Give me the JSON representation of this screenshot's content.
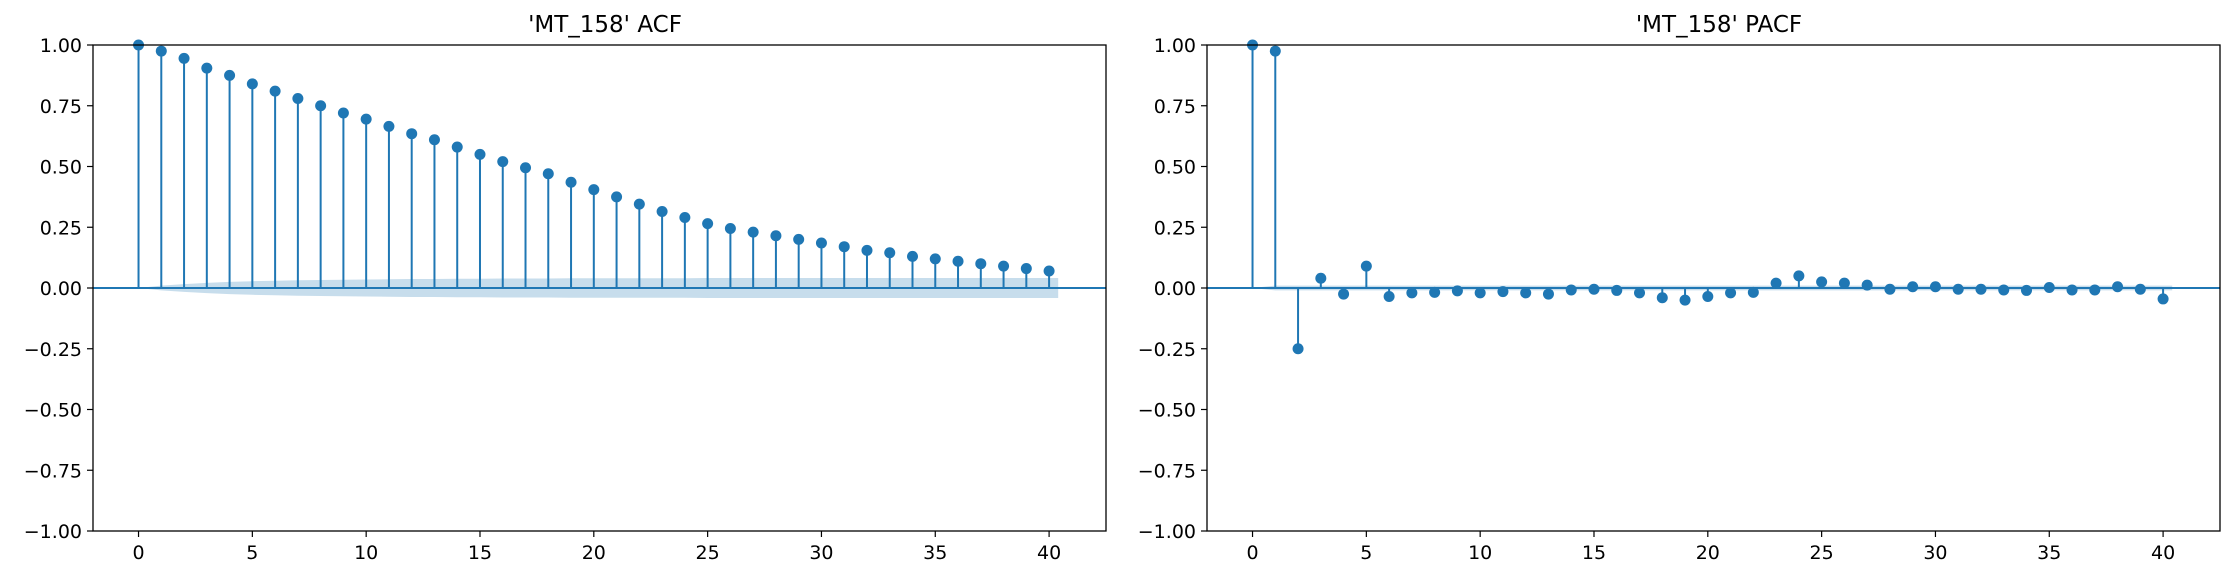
{
  "colors": {
    "stem": "#1f77b4",
    "confidence_band": "#1f77b4",
    "axes": "#000000",
    "background": "#ffffff"
  },
  "chart_data": [
    {
      "type": "stem",
      "title": "'MT_158' ACF",
      "xlabel": "",
      "ylabel": "",
      "xlim": [
        -2,
        42.5
      ],
      "ylim": [
        -1.0,
        1.0
      ],
      "xticks": [
        0,
        5,
        10,
        15,
        20,
        25,
        30,
        35,
        40
      ],
      "xtick_labels": [
        "0",
        "5",
        "10",
        "15",
        "20",
        "25",
        "30",
        "35",
        "40"
      ],
      "yticks": [
        1.0,
        0.75,
        0.5,
        0.25,
        0.0,
        -0.25,
        -0.5,
        -0.75,
        -1.0
      ],
      "ytick_labels": [
        "1.00",
        "0.75",
        "0.50",
        "0.25",
        "0.00",
        "−0.25",
        "−0.50",
        "−0.75",
        "−1.00"
      ],
      "grid": false,
      "legend": "none",
      "x": [
        0,
        1,
        2,
        3,
        4,
        5,
        6,
        7,
        8,
        9,
        10,
        11,
        12,
        13,
        14,
        15,
        16,
        17,
        18,
        19,
        20,
        21,
        22,
        23,
        24,
        25,
        26,
        27,
        28,
        29,
        30,
        31,
        32,
        33,
        34,
        35,
        36,
        37,
        38,
        39,
        40
      ],
      "values": [
        1.0,
        0.975,
        0.945,
        0.905,
        0.875,
        0.84,
        0.81,
        0.78,
        0.75,
        0.72,
        0.695,
        0.665,
        0.635,
        0.61,
        0.58,
        0.55,
        0.52,
        0.495,
        0.47,
        0.435,
        0.405,
        0.375,
        0.345,
        0.315,
        0.29,
        0.265,
        0.245,
        0.23,
        0.215,
        0.2,
        0.185,
        0.17,
        0.155,
        0.145,
        0.13,
        0.12,
        0.11,
        0.1,
        0.09,
        0.08,
        0.07
      ],
      "confidence_band": {
        "x": [
          0,
          1,
          2,
          3,
          4,
          5,
          6,
          7,
          8,
          9,
          10,
          11,
          12,
          13,
          14,
          15,
          16,
          17,
          18,
          19,
          20,
          21,
          22,
          23,
          24,
          25,
          26,
          27,
          28,
          29,
          30,
          31,
          32,
          33,
          34,
          35,
          36,
          37,
          38,
          39,
          40
        ],
        "upper": [
          0.0,
          0.01,
          0.016,
          0.021,
          0.025,
          0.028,
          0.03,
          0.032,
          0.033,
          0.034,
          0.035,
          0.036,
          0.037,
          0.037,
          0.038,
          0.038,
          0.039,
          0.039,
          0.039,
          0.04,
          0.04,
          0.04,
          0.04,
          0.04,
          0.04,
          0.041,
          0.041,
          0.041,
          0.041,
          0.041,
          0.041,
          0.041,
          0.041,
          0.041,
          0.041,
          0.041,
          0.041,
          0.041,
          0.041,
          0.041,
          0.041
        ]
      }
    },
    {
      "type": "stem",
      "title": "'MT_158' PACF",
      "xlabel": "",
      "ylabel": "",
      "xlim": [
        -2,
        42.5
      ],
      "ylim": [
        -1.0,
        1.0
      ],
      "xticks": [
        0,
        5,
        10,
        15,
        20,
        25,
        30,
        35,
        40
      ],
      "xtick_labels": [
        "0",
        "5",
        "10",
        "15",
        "20",
        "25",
        "30",
        "35",
        "40"
      ],
      "yticks": [
        1.0,
        0.75,
        0.5,
        0.25,
        0.0,
        -0.25,
        -0.5,
        -0.75,
        -1.0
      ],
      "ytick_labels": [
        "1.00",
        "0.75",
        "0.50",
        "0.25",
        "0.00",
        "−0.25",
        "−0.50",
        "−0.75",
        "−1.00"
      ],
      "grid": false,
      "legend": "none",
      "x": [
        0,
        1,
        2,
        3,
        4,
        5,
        6,
        7,
        8,
        9,
        10,
        11,
        12,
        13,
        14,
        15,
        16,
        17,
        18,
        19,
        20,
        21,
        22,
        23,
        24,
        25,
        26,
        27,
        28,
        29,
        30,
        31,
        32,
        33,
        34,
        35,
        36,
        37,
        38,
        39,
        40
      ],
      "values": [
        1.0,
        0.975,
        -0.25,
        0.04,
        -0.025,
        0.09,
        -0.035,
        -0.02,
        -0.018,
        -0.012,
        -0.02,
        -0.015,
        -0.02,
        -0.025,
        -0.008,
        -0.005,
        -0.01,
        -0.02,
        -0.04,
        -0.05,
        -0.035,
        -0.02,
        -0.018,
        0.02,
        0.05,
        0.025,
        0.02,
        0.012,
        -0.005,
        0.005,
        0.005,
        -0.005,
        -0.005,
        -0.008,
        -0.01,
        0.002,
        -0.008,
        -0.008,
        0.005,
        -0.005,
        -0.045
      ],
      "confidence_band": {
        "x": [
          0,
          1,
          2,
          3,
          4,
          5,
          6,
          7,
          8,
          9,
          10,
          11,
          12,
          13,
          14,
          15,
          16,
          17,
          18,
          19,
          20,
          21,
          22,
          23,
          24,
          25,
          26,
          27,
          28,
          29,
          30,
          31,
          32,
          33,
          34,
          35,
          36,
          37,
          38,
          39,
          40
        ],
        "upper": [
          0.0,
          0.01,
          0.01,
          0.01,
          0.01,
          0.01,
          0.01,
          0.01,
          0.01,
          0.01,
          0.01,
          0.01,
          0.01,
          0.01,
          0.01,
          0.01,
          0.01,
          0.01,
          0.01,
          0.01,
          0.01,
          0.01,
          0.01,
          0.01,
          0.01,
          0.01,
          0.01,
          0.01,
          0.01,
          0.01,
          0.01,
          0.01,
          0.01,
          0.01,
          0.01,
          0.01,
          0.01,
          0.01,
          0.01,
          0.01,
          0.01
        ]
      }
    }
  ]
}
